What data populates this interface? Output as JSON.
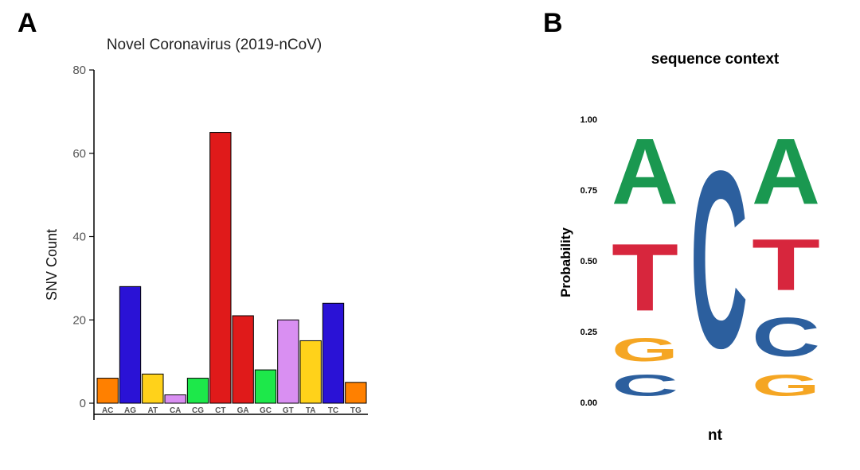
{
  "chart_data": [
    {
      "panel": "A",
      "type": "bar",
      "title": "Novel Coronavirus (2019-nCoV)",
      "xlabel": "",
      "ylabel": "SNV Count",
      "ylim": [
        0,
        80
      ],
      "yticks": [
        0,
        20,
        40,
        60,
        80
      ],
      "categories": [
        "AC",
        "AG",
        "AT",
        "CA",
        "CG",
        "CT",
        "GA",
        "GC",
        "GT",
        "TA",
        "TC",
        "TG"
      ],
      "values": [
        6,
        28,
        7,
        2,
        6,
        65,
        21,
        8,
        20,
        15,
        24,
        5
      ],
      "colors": [
        "#ff8000",
        "#2a12d6",
        "#ffd21a",
        "#d98ff2",
        "#1de84a",
        "#e01a1a",
        "#e01a1a",
        "#1de84a",
        "#d98ff2",
        "#ffd21a",
        "#2a12d6",
        "#ff8000"
      ]
    },
    {
      "panel": "B",
      "type": "other",
      "subtype": "sequence-logo",
      "title": "sequence context",
      "xlabel": "nt",
      "ylabel": "Probability",
      "ylim": [
        0,
        1
      ],
      "yticks": [
        "0.00",
        "0.25",
        "0.50",
        "0.75",
        "1.00"
      ],
      "positions": [
        {
          "letters": [
            {
              "base": "C",
              "prob": 0.12
            },
            {
              "base": "G",
              "prob": 0.13
            },
            {
              "base": "T",
              "prob": 0.38
            },
            {
              "base": "A",
              "prob": 0.37
            }
          ]
        },
        {
          "letters": [
            {
              "base": "C",
              "prob": 1.0
            }
          ]
        },
        {
          "letters": [
            {
              "base": "G",
              "prob": 0.12
            },
            {
              "base": "C",
              "prob": 0.22
            },
            {
              "base": "T",
              "prob": 0.29
            },
            {
              "base": "A",
              "prob": 0.37
            }
          ]
        }
      ],
      "base_colors": {
        "A": "#1a9850",
        "C": "#2c5f9e",
        "G": "#f5a623",
        "T": "#d7263d"
      }
    }
  ]
}
